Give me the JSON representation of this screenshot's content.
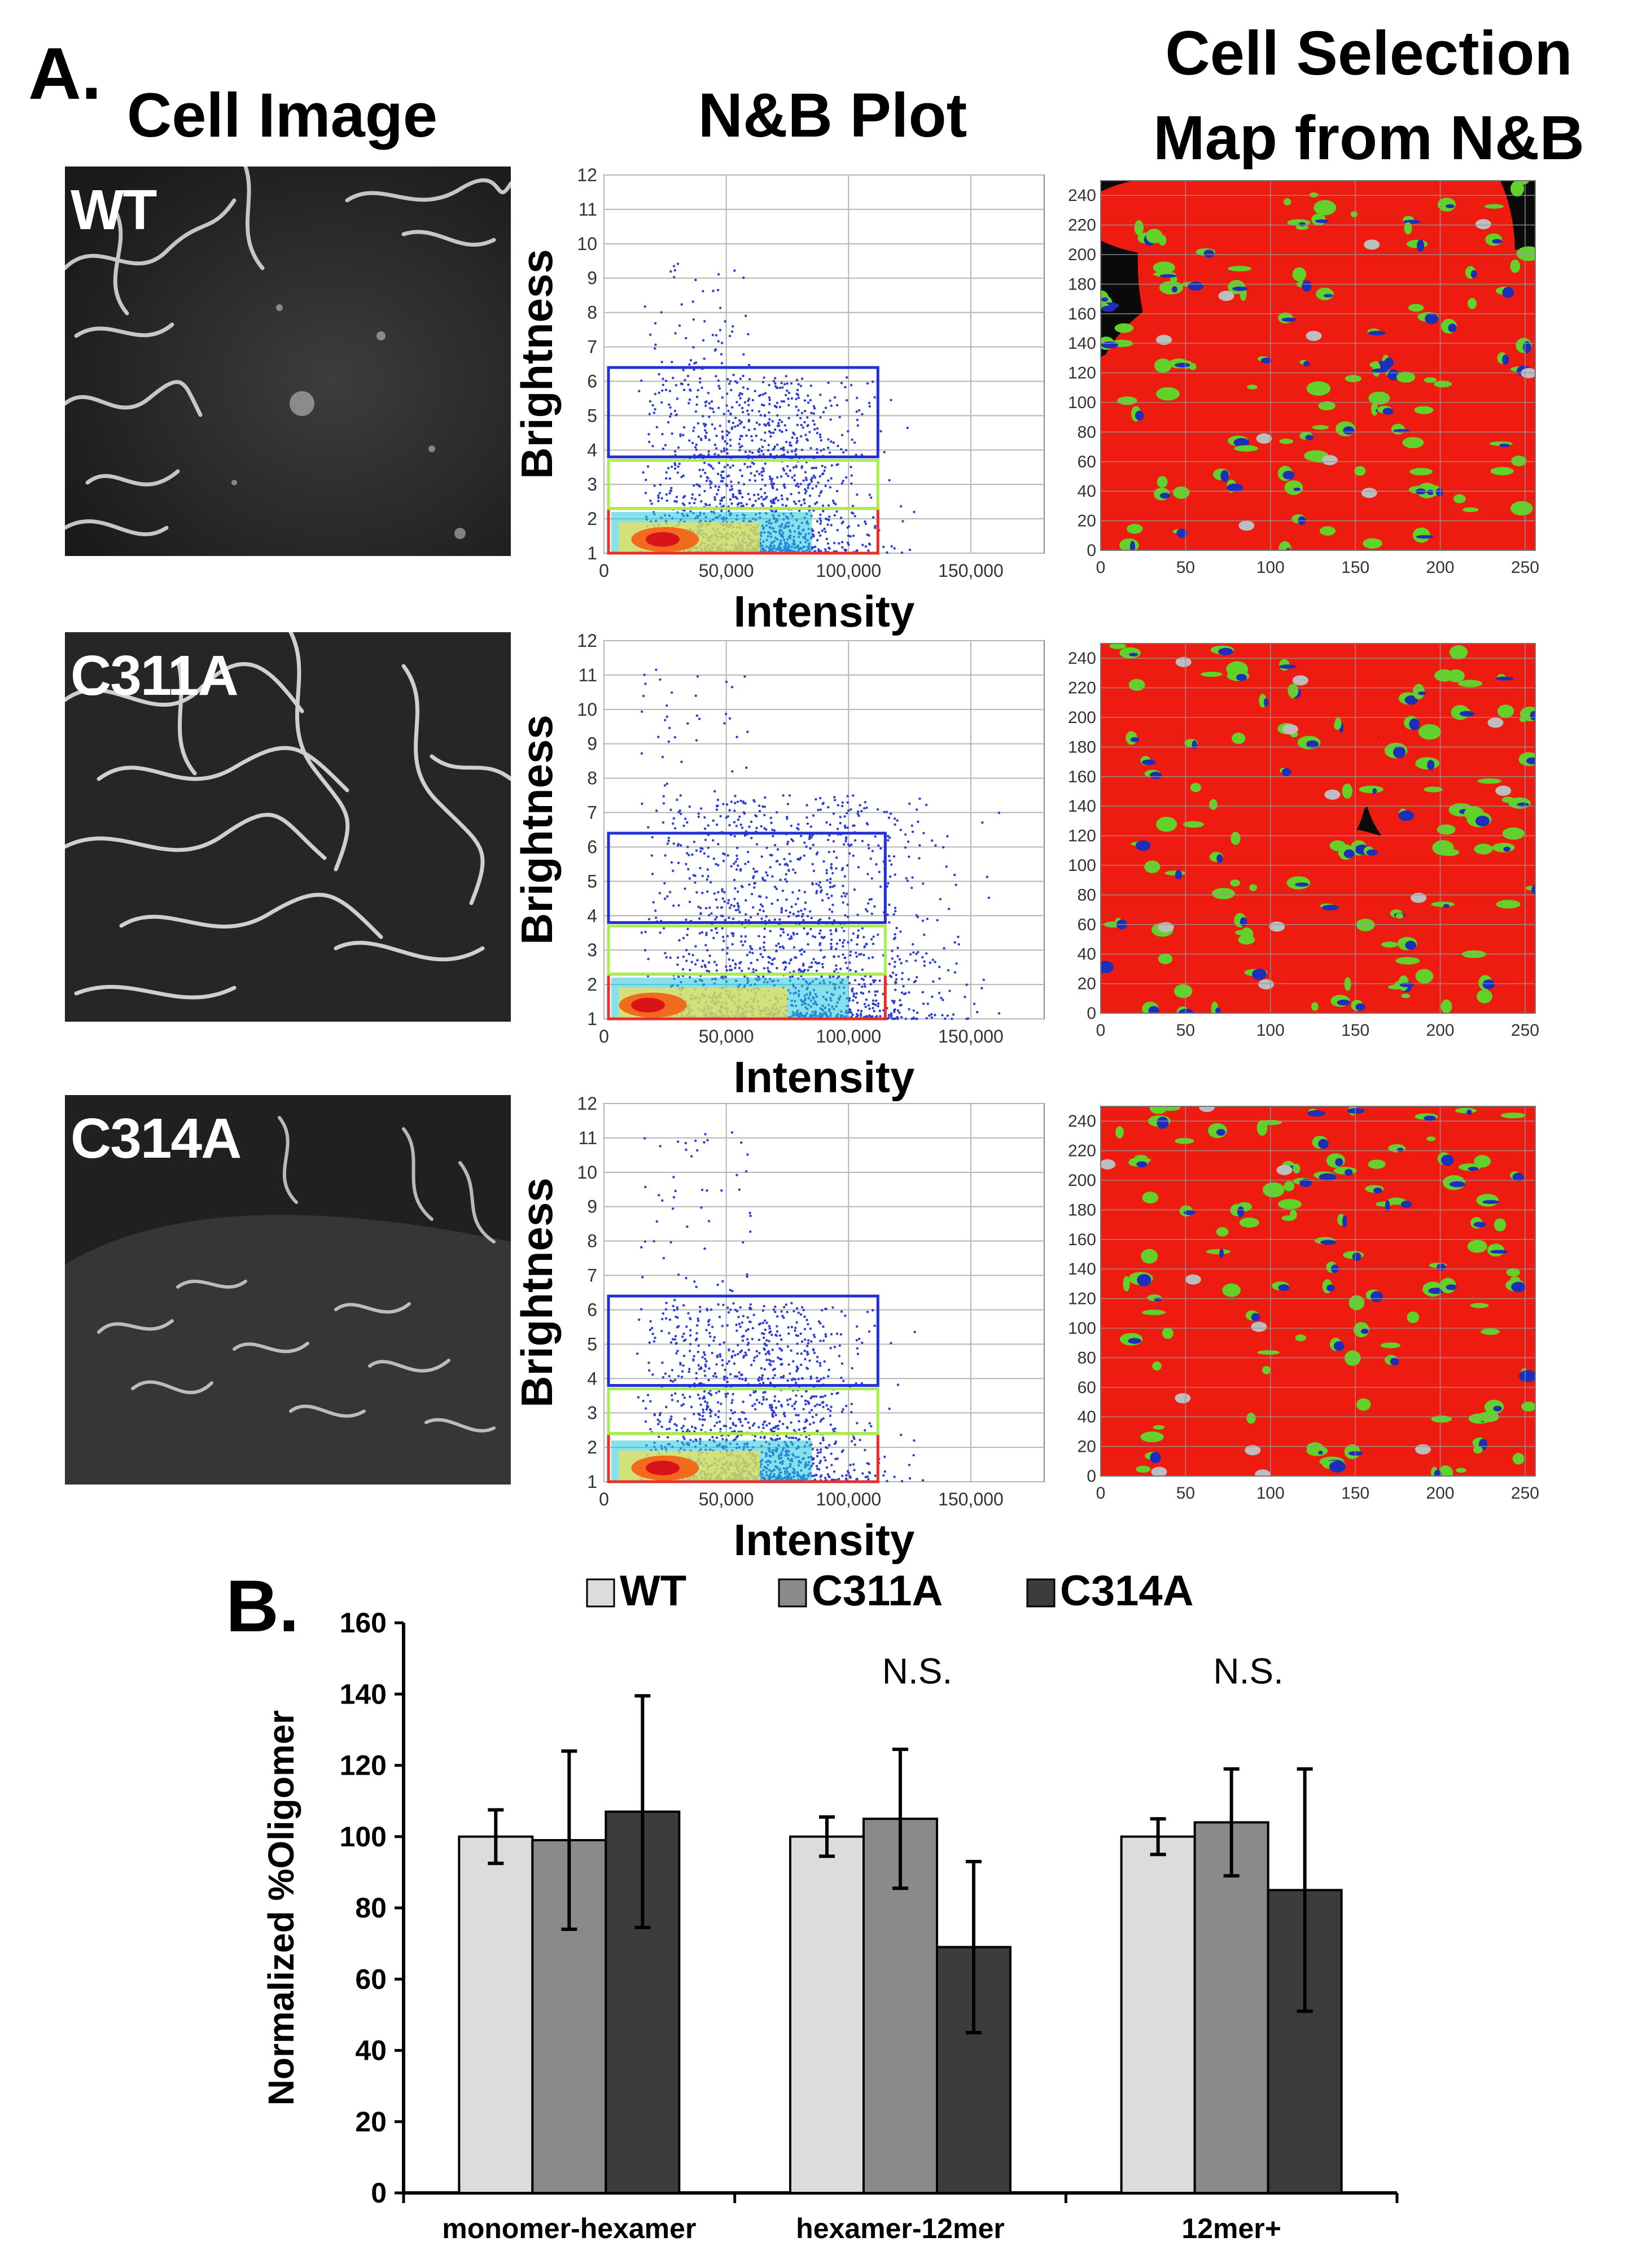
{
  "panel_a": {
    "letter": "A.",
    "headers": {
      "cell_image": "Cell Image",
      "nb_plot": "N&B Plot",
      "map_line1": "Cell Selection",
      "map_line2": "Map from N&B"
    },
    "rows": [
      {
        "label": "WT"
      },
      {
        "label": "C311A"
      },
      {
        "label": "C314A"
      }
    ],
    "nb_axes": {
      "xlabel": "Intensity",
      "ylabel": "Brightness",
      "xticks": [
        "0",
        "50,000",
        "100,000",
        "150,000"
      ],
      "yticks": [
        "1",
        "2",
        "3",
        "4",
        "5",
        "6",
        "7",
        "8",
        "9",
        "10",
        "11",
        "12"
      ]
    },
    "map_axes": {
      "xticks": [
        "0",
        "50",
        "100",
        "150",
        "200",
        "250"
      ],
      "yticks": [
        "0",
        "20",
        "40",
        "60",
        "80",
        "100",
        "120",
        "140",
        "160",
        "180",
        "200",
        "220",
        "240"
      ]
    },
    "colors": {
      "monomer_box": "#e8302a",
      "hexamer_box": "#a8ee4c",
      "oligomer_box": "#2330d6",
      "map_red": "#ee1c10"
    }
  },
  "panel_b": {
    "letter": "B."
  },
  "chart_data": [
    {
      "type": "scatter",
      "title": "N&B Plot",
      "xlabel": "Intensity",
      "ylabel": "Brightness",
      "xlim": [
        0,
        180000
      ],
      "ylim": [
        1,
        12
      ],
      "row": "WT",
      "selection_boxes": [
        {
          "name": "monomer",
          "x": [
            0,
            112000
          ],
          "y": [
            1,
            2.3
          ],
          "color": "#e8302a"
        },
        {
          "name": "hexamer",
          "x": [
            0,
            112000
          ],
          "y": [
            2.3,
            3.7
          ],
          "color": "#a8ee4c"
        },
        {
          "name": "oligomer",
          "x": [
            0,
            112000
          ],
          "y": [
            3.8,
            6.4
          ],
          "color": "#2330d6"
        }
      ]
    },
    {
      "type": "scatter",
      "title": "N&B Plot",
      "xlabel": "Intensity",
      "ylabel": "Brightness",
      "xlim": [
        0,
        180000
      ],
      "ylim": [
        1,
        12
      ],
      "row": "C311A",
      "selection_boxes": [
        {
          "name": "monomer",
          "x": [
            0,
            115000
          ],
          "y": [
            1,
            2.3
          ],
          "color": "#e8302a"
        },
        {
          "name": "hexamer",
          "x": [
            0,
            115000
          ],
          "y": [
            2.3,
            3.7
          ],
          "color": "#a8ee4c"
        },
        {
          "name": "oligomer",
          "x": [
            0,
            115000
          ],
          "y": [
            3.8,
            6.4
          ],
          "color": "#2330d6"
        }
      ]
    },
    {
      "type": "scatter",
      "title": "N&B Plot",
      "xlabel": "Intensity",
      "ylabel": "Brightness",
      "xlim": [
        0,
        180000
      ],
      "ylim": [
        1,
        12
      ],
      "row": "C314A",
      "selection_boxes": [
        {
          "name": "monomer",
          "x": [
            0,
            112000
          ],
          "y": [
            1,
            2.4
          ],
          "color": "#e8302a"
        },
        {
          "name": "hexamer",
          "x": [
            0,
            112000
          ],
          "y": [
            2.4,
            3.7
          ],
          "color": "#a8ee4c"
        },
        {
          "name": "oligomer",
          "x": [
            0,
            112000
          ],
          "y": [
            3.8,
            6.4
          ],
          "color": "#2330d6"
        }
      ]
    },
    {
      "type": "bar",
      "title": "",
      "xlabel": "",
      "ylabel": "Normalized %Oligomer",
      "ylim": [
        0,
        160
      ],
      "yticks": [
        "0",
        "20",
        "40",
        "60",
        "80",
        "100",
        "120",
        "140",
        "160"
      ],
      "categories": [
        "monomer-hexamer",
        "hexamer-12mer",
        "12mer+"
      ],
      "series": [
        {
          "name": "WT",
          "color": "#dcdcdc",
          "values": [
            100,
            100,
            100
          ],
          "errors": [
            7.5,
            5.5,
            5
          ]
        },
        {
          "name": "C311A",
          "color": "#8a8a8a",
          "values": [
            99,
            105,
            104
          ],
          "errors": [
            25,
            19.5,
            15
          ]
        },
        {
          "name": "C314A",
          "color": "#3c3c3c",
          "values": [
            107,
            69,
            85
          ],
          "errors": [
            32.5,
            24,
            34
          ]
        }
      ],
      "annotations": [
        "",
        "N.S.",
        "N.S."
      ],
      "legend": "top"
    }
  ]
}
